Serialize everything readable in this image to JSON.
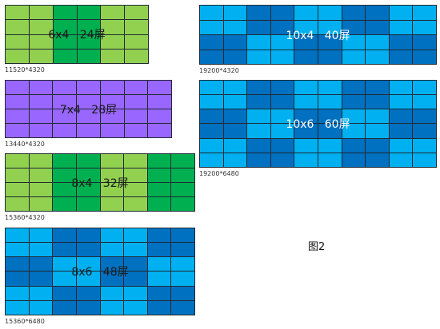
{
  "caption": "图2",
  "colors": {
    "green_light": "#92d050",
    "green_dark": "#00b050",
    "purple": "#9966ff",
    "blue_light": "#00b0f0",
    "blue_dark": "#0070c0"
  },
  "walls": [
    {
      "id": "w1",
      "label": "6x4   24屏",
      "resolution": "11520*4320",
      "cols": 6,
      "rows": 4,
      "scheme": "green"
    },
    {
      "id": "w2",
      "label": "7x4   28屏",
      "resolution": "13440*4320",
      "cols": 7,
      "rows": 4,
      "scheme": "purple"
    },
    {
      "id": "w3",
      "label": "8x4   32屏",
      "resolution": "15360*4320",
      "cols": 8,
      "rows": 4,
      "scheme": "green"
    },
    {
      "id": "w4",
      "label": "8x6   48屏",
      "resolution": "15360*6480",
      "cols": 8,
      "rows": 6,
      "scheme": "blue"
    },
    {
      "id": "w5",
      "label": "10x4   40屏",
      "resolution": "19200*4320",
      "cols": 10,
      "rows": 4,
      "scheme": "blue"
    },
    {
      "id": "w6",
      "label": "10x6   60屏",
      "resolution": "19200*6480",
      "cols": 10,
      "rows": 6,
      "scheme": "blue"
    }
  ]
}
